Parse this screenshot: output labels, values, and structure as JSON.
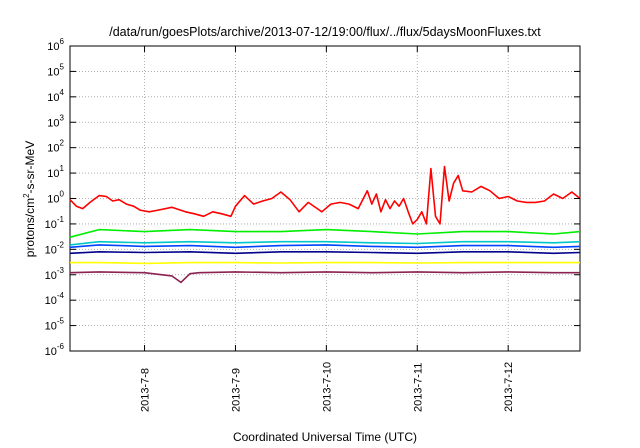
{
  "chart_data": {
    "type": "line",
    "title": "/data/run/goesPlots/archive/2013-07-12/19:00/flux/../flux/5daysMoonFluxes.txt",
    "xlabel": "Coordinated Universal Time (UTC)",
    "ylabel_parts": [
      "protons/cm",
      "2",
      "-s-sr-MeV"
    ],
    "yscale": "log",
    "ylim": [
      1e-06,
      1000000.0
    ],
    "y_ticks": [
      {
        "base": "10",
        "exp": "-6",
        "value": 1e-06
      },
      {
        "base": "10",
        "exp": "-5",
        "value": 1e-05
      },
      {
        "base": "10",
        "exp": "-4",
        "value": 0.0001
      },
      {
        "base": "10",
        "exp": "-3",
        "value": 0.001
      },
      {
        "base": "10",
        "exp": "-2",
        "value": 0.01
      },
      {
        "base": "10",
        "exp": "-1",
        "value": 0.1
      },
      {
        "base": "10",
        "exp": "0",
        "value": 1
      },
      {
        "base": "10",
        "exp": "1",
        "value": 10
      },
      {
        "base": "10",
        "exp": "2",
        "value": 100
      },
      {
        "base": "10",
        "exp": "3",
        "value": 1000
      },
      {
        "base": "10",
        "exp": "4",
        "value": 10000
      },
      {
        "base": "10",
        "exp": "5",
        "value": 100000
      },
      {
        "base": "10",
        "exp": "6",
        "value": 1000000
      }
    ],
    "x_ticks": [
      "2013-7-8",
      "2013-7-9",
      "2013-7-10",
      "2013-7-11",
      "2013-7-12"
    ],
    "xlim_days": [
      7.18,
      12.79
    ],
    "grid": true,
    "series": [
      {
        "color": "#ff0000",
        "x": [
          7.18,
          7.25,
          7.32,
          7.4,
          7.5,
          7.58,
          7.65,
          7.72,
          7.8,
          7.88,
          7.95,
          8.05,
          8.15,
          8.3,
          8.45,
          8.55,
          8.65,
          8.75,
          8.85,
          8.95,
          9.0,
          9.1,
          9.2,
          9.3,
          9.4,
          9.5,
          9.6,
          9.7,
          9.8,
          9.9,
          9.95,
          10.05,
          10.15,
          10.25,
          10.35,
          10.45,
          10.5,
          10.55,
          10.6,
          10.65,
          10.7,
          10.75,
          10.8,
          10.85,
          10.9,
          10.95,
          11.0,
          11.05,
          11.1,
          11.15,
          11.2,
          11.25,
          11.3,
          11.35,
          11.4,
          11.45,
          11.5,
          11.6,
          11.7,
          11.8,
          11.9,
          12.0,
          12.1,
          12.2,
          12.3,
          12.4,
          12.5,
          12.6,
          12.7,
          12.79
        ],
        "y": [
          0.9,
          0.5,
          0.4,
          0.7,
          1.3,
          1.2,
          0.8,
          0.9,
          0.6,
          0.5,
          0.35,
          0.3,
          0.35,
          0.45,
          0.3,
          0.25,
          0.2,
          0.3,
          0.25,
          0.2,
          0.5,
          1.3,
          0.6,
          0.8,
          1.0,
          1.8,
          0.9,
          0.3,
          0.7,
          0.4,
          0.3,
          0.6,
          0.7,
          0.6,
          0.4,
          2.0,
          0.6,
          1.5,
          0.3,
          0.9,
          0.4,
          0.8,
          0.5,
          1.0,
          0.3,
          0.1,
          0.15,
          0.3,
          0.1,
          15,
          0.2,
          0.1,
          18,
          0.8,
          4,
          8,
          2,
          1.8,
          3,
          2,
          1,
          1.2,
          0.8,
          0.7,
          0.7,
          0.8,
          1.5,
          1.0,
          1.8,
          1.0
        ]
      },
      {
        "color": "#00ee00",
        "x": [
          7.18,
          7.5,
          8.0,
          8.5,
          9.0,
          9.5,
          10.0,
          10.5,
          11.0,
          11.5,
          12.0,
          12.5,
          12.79
        ],
        "y": [
          0.03,
          0.06,
          0.05,
          0.06,
          0.05,
          0.05,
          0.06,
          0.05,
          0.04,
          0.05,
          0.05,
          0.04,
          0.05
        ]
      },
      {
        "color": "#00c8c8",
        "x": [
          7.18,
          7.5,
          8.0,
          8.5,
          9.0,
          9.5,
          10.0,
          10.5,
          11.0,
          11.5,
          12.0,
          12.5,
          12.79
        ],
        "y": [
          0.015,
          0.02,
          0.018,
          0.02,
          0.018,
          0.02,
          0.02,
          0.018,
          0.017,
          0.02,
          0.02,
          0.018,
          0.02
        ]
      },
      {
        "color": "#0044ff",
        "x": [
          7.18,
          7.5,
          8.0,
          8.5,
          9.0,
          9.5,
          10.0,
          10.5,
          11.0,
          11.5,
          12.0,
          12.5,
          12.79
        ],
        "y": [
          0.012,
          0.015,
          0.013,
          0.014,
          0.012,
          0.014,
          0.015,
          0.013,
          0.012,
          0.014,
          0.014,
          0.012,
          0.013
        ]
      },
      {
        "color": "#00008b",
        "x": [
          7.18,
          7.5,
          8.0,
          8.5,
          9.0,
          9.5,
          10.0,
          10.5,
          11.0,
          11.5,
          12.0,
          12.5,
          12.79
        ],
        "y": [
          0.007,
          0.008,
          0.0075,
          0.008,
          0.007,
          0.008,
          0.008,
          0.0075,
          0.007,
          0.008,
          0.008,
          0.007,
          0.0075
        ]
      },
      {
        "color": "#ffff00",
        "x": [
          7.18,
          7.5,
          8.0,
          8.5,
          9.0,
          9.5,
          10.0,
          10.5,
          11.0,
          11.5,
          12.0,
          12.5,
          12.79
        ],
        "y": [
          0.003,
          0.003,
          0.0028,
          0.003,
          0.003,
          0.0029,
          0.003,
          0.003,
          0.0029,
          0.003,
          0.003,
          0.003,
          0.003
        ]
      },
      {
        "color": "#8b2252",
        "x": [
          7.18,
          7.5,
          8.0,
          8.3,
          8.4,
          8.5,
          8.6,
          9.0,
          9.5,
          10.0,
          10.5,
          11.0,
          11.5,
          12.0,
          12.5,
          12.79
        ],
        "y": [
          0.0012,
          0.0013,
          0.0012,
          0.0009,
          0.0005,
          0.0011,
          0.0012,
          0.0013,
          0.0012,
          0.0013,
          0.0012,
          0.0013,
          0.0012,
          0.0013,
          0.0012,
          0.0012
        ]
      }
    ]
  }
}
